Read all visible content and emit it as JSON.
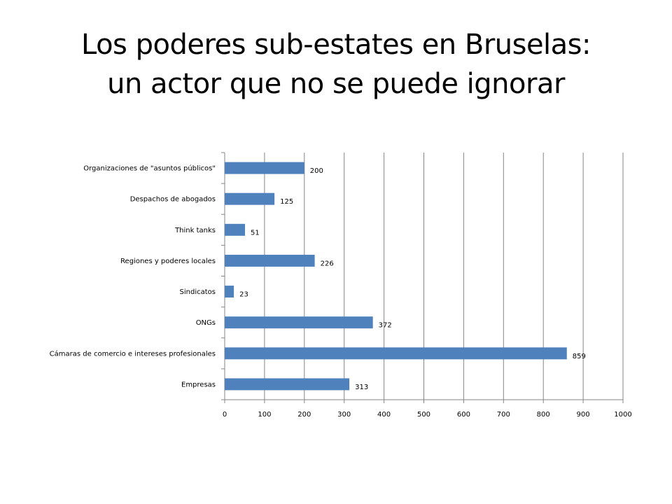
{
  "slide": {
    "title_line1": "Los poderes sub-estates en Bruselas:",
    "title_line2": "un actor que no se puede ignorar"
  },
  "colors": {
    "bar": "#4F81BD",
    "gridline": "#868686",
    "axis": "#868686"
  },
  "chart_data": {
    "type": "bar",
    "orientation": "horizontal",
    "categories": [
      "Organizaciones de \"asuntos públicos\"",
      "Despachos de abogados",
      "Think tanks",
      "Regiones y poderes locales",
      "Sindicatos",
      "ONGs",
      "Cámaras de comercio e intereses profesionales",
      "Empresas"
    ],
    "values": [
      200,
      125,
      51,
      226,
      23,
      372,
      859,
      313
    ],
    "xlim": [
      0,
      1000
    ],
    "xticks": [
      0,
      100,
      200,
      300,
      400,
      500,
      600,
      700,
      800,
      900,
      1000
    ],
    "data_labels": true,
    "grid": "vertical major gridlines",
    "legend": "none"
  }
}
